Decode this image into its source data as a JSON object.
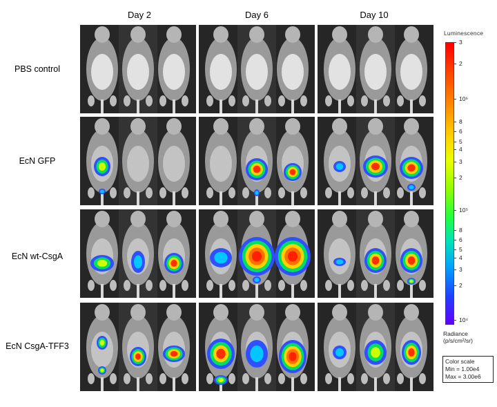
{
  "columns": [
    "Day 2",
    "Day 6",
    "Day 10"
  ],
  "rows": [
    "PBS control",
    "EcN GFP",
    "EcN wt-CsgA",
    "EcN CsgA-TFF3"
  ],
  "colorbar": {
    "title": "Luminescence",
    "ticks": [
      "3",
      "2",
      "10⁶",
      "8",
      "6",
      "5",
      "4",
      "3",
      "2",
      "10⁵",
      "8",
      "6",
      "5",
      "4",
      "3",
      "2",
      "10⁴"
    ],
    "unit_line1": "Radiance",
    "unit_line2": "(p/s/cm²/sr)",
    "scale_title": "Color scale",
    "scale_min": "Min = 1.00e4",
    "scale_max": "Max = 3.00e6"
  },
  "colors": {
    "fur": "#c9c9c9",
    "background": "#1a1a1a",
    "signal_high": "#ff2a00",
    "signal_mid": "#ffd000",
    "signal_low": "#2060ff"
  }
}
